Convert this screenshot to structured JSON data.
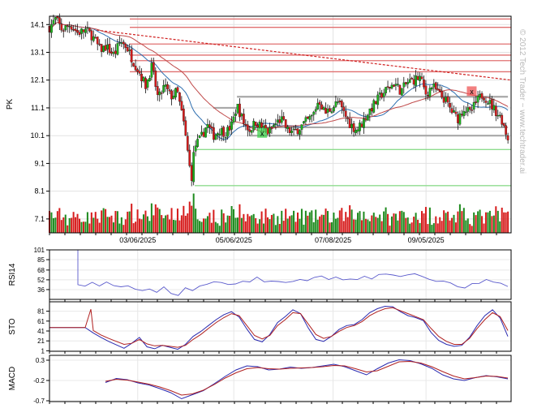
{
  "watermark": "© 2012 Tech Trader ~ www.techtrader.ai",
  "chart_data": [
    {
      "type": "candlestick",
      "panel": "price",
      "ylabel": "PK",
      "yticks": [
        7.1,
        8.1,
        9.1,
        10.1,
        11.1,
        12.1,
        13.1,
        14.1
      ],
      "ylim": [
        6.6,
        14.4
      ],
      "xlim": [
        "2025-01-09",
        "2025-10-29"
      ],
      "xticks": [
        "03/06/2025",
        "05/06/2025",
        "07/08/2025",
        "09/05/2025"
      ],
      "grid": true,
      "close_path": [
        [
          "2025-01-09",
          14.0
        ],
        [
          "2025-01-13",
          14.3
        ],
        [
          "2025-01-17",
          13.9
        ],
        [
          "2025-01-22",
          14.1
        ],
        [
          "2025-01-27",
          13.8
        ],
        [
          "2025-02-01",
          13.9
        ],
        [
          "2025-02-05",
          13.7
        ],
        [
          "2025-02-10",
          13.2
        ],
        [
          "2025-02-14",
          13.3
        ],
        [
          "2025-02-19",
          13.0
        ],
        [
          "2025-02-23",
          13.5
        ],
        [
          "2025-02-27",
          13.3
        ],
        [
          "2025-03-03",
          12.8
        ],
        [
          "2025-03-07",
          12.4
        ],
        [
          "2025-03-11",
          11.9
        ],
        [
          "2025-03-15",
          12.6
        ],
        [
          "2025-03-19",
          11.4
        ],
        [
          "2025-03-23",
          11.9
        ],
        [
          "2025-03-27",
          11.5
        ],
        [
          "2025-03-31",
          11.7
        ],
        [
          "2025-04-04",
          10.6
        ],
        [
          "2025-04-07",
          9.4
        ],
        [
          "2025-04-09",
          8.5
        ],
        [
          "2025-04-11",
          9.7
        ],
        [
          "2025-04-15",
          10.0
        ],
        [
          "2025-04-19",
          10.5
        ],
        [
          "2025-04-23",
          10.1
        ],
        [
          "2025-04-27",
          10.3
        ],
        [
          "2025-05-01",
          10.2
        ],
        [
          "2025-05-05",
          10.5
        ],
        [
          "2025-05-08",
          11.2
        ],
        [
          "2025-05-12",
          10.6
        ],
        [
          "2025-05-16",
          10.3
        ],
        [
          "2025-05-20",
          10.6
        ],
        [
          "2025-05-24",
          10.4
        ],
        [
          "2025-05-28",
          10.2
        ],
        [
          "2025-06-01",
          10.5
        ],
        [
          "2025-06-05",
          10.7
        ],
        [
          "2025-06-09",
          10.3
        ],
        [
          "2025-06-13",
          10.2
        ],
        [
          "2025-06-17",
          10.4
        ],
        [
          "2025-06-21",
          10.6
        ],
        [
          "2025-06-25",
          10.8
        ],
        [
          "2025-06-29",
          11.4
        ],
        [
          "2025-07-03",
          10.9
        ],
        [
          "2025-07-07",
          11.1
        ],
        [
          "2025-07-11",
          11.3
        ],
        [
          "2025-07-15",
          10.9
        ],
        [
          "2025-07-19",
          10.5
        ],
        [
          "2025-07-23",
          10.3
        ],
        [
          "2025-07-27",
          10.6
        ],
        [
          "2025-07-31",
          11.0
        ],
        [
          "2025-08-04",
          11.3
        ],
        [
          "2025-08-08",
          11.6
        ],
        [
          "2025-08-12",
          11.8
        ],
        [
          "2025-08-16",
          12.0
        ],
        [
          "2025-08-20",
          11.7
        ],
        [
          "2025-08-24",
          12.0
        ],
        [
          "2025-08-28",
          12.1
        ],
        [
          "2025-09-01",
          12.2
        ],
        [
          "2025-09-05",
          11.6
        ],
        [
          "2025-09-09",
          11.9
        ],
        [
          "2025-09-13",
          11.6
        ],
        [
          "2025-09-17",
          11.4
        ],
        [
          "2025-09-21",
          11.0
        ],
        [
          "2025-09-25",
          10.7
        ],
        [
          "2025-09-29",
          11.1
        ],
        [
          "2025-10-03",
          10.9
        ],
        [
          "2025-10-07",
          11.3
        ],
        [
          "2025-10-11",
          11.6
        ],
        [
          "2025-10-15",
          11.3
        ],
        [
          "2025-10-19",
          11.0
        ],
        [
          "2025-10-23",
          10.7
        ],
        [
          "2025-10-27",
          10.0
        ]
      ],
      "resistance_lines": [
        14.3,
        14.0,
        13.4,
        13.0,
        12.8,
        12.4
      ],
      "support_lines": [
        9.6,
        8.3
      ],
      "grey_levels": [
        {
          "value": 11.5,
          "from": "2025-05-08",
          "to": "2025-10-27"
        },
        {
          "value": 11.1,
          "from": "2025-04-23",
          "to": "2025-05-08"
        },
        {
          "value": 10.4,
          "from": "2025-05-16",
          "to": "2025-10-27"
        },
        {
          "value": 10.1,
          "from": "2025-05-16",
          "to": "2025-10-27"
        }
      ],
      "trendline": {
        "from": [
          "2025-02-08",
          13.9
        ],
        "to": [
          "2025-10-29",
          12.1
        ]
      },
      "markers": [
        {
          "label": "x",
          "date": "2025-05-24",
          "value": 10.2,
          "color": "#3ccf4b"
        },
        {
          "label": "x",
          "date": "2025-10-04",
          "value": 11.7,
          "color": "#ee5555"
        }
      ],
      "volume": {
        "ymax": 8.0
      }
    },
    {
      "type": "line",
      "panel": "RSI14",
      "ylabel": "RSI14",
      "yticks": [
        101,
        85,
        68,
        52,
        36
      ],
      "ylim": [
        20,
        101
      ],
      "series": [
        {
          "values": [
            44,
            46,
            44,
            46,
            43,
            40,
            42,
            37,
            34,
            40,
            32,
            38,
            30,
            25,
            39,
            37,
            42,
            45,
            46,
            48,
            45,
            47,
            52,
            49,
            55,
            50,
            47,
            51,
            49,
            47,
            52,
            48,
            54,
            56,
            53,
            58,
            52,
            55,
            51,
            57,
            54,
            59,
            61,
            57,
            60,
            58,
            61,
            57,
            54,
            50,
            48,
            44,
            40,
            38,
            44,
            48,
            52,
            49,
            44,
            40
          ]
        }
      ]
    },
    {
      "type": "line",
      "panel": "STO",
      "ylabel": "STO",
      "yticks": [
        81,
        61,
        41,
        21,
        1
      ],
      "ylim": [
        0,
        100
      ],
      "series": [
        {
          "values": [
            37,
            28,
            20,
            13,
            6,
            16,
            28,
            9,
            5,
            12,
            8,
            4,
            14,
            30,
            40,
            52,
            64,
            74,
            80,
            69,
            45,
            24,
            19,
            34,
            58,
            70,
            84,
            76,
            47,
            24,
            20,
            30,
            44,
            52,
            54,
            64,
            78,
            86,
            91,
            90,
            80,
            72,
            68,
            62,
            38,
            22,
            14,
            10,
            12,
            28,
            52,
            72,
            84,
            67,
            30
          ]
        },
        {
          "values": [
            42,
            33,
            26,
            20,
            14,
            16,
            24,
            15,
            11,
            12,
            10,
            8,
            12,
            24,
            34,
            46,
            58,
            68,
            76,
            72,
            52,
            32,
            25,
            32,
            52,
            64,
            78,
            76,
            55,
            34,
            26,
            30,
            40,
            48,
            52,
            60,
            72,
            80,
            86,
            88,
            82,
            76,
            70,
            64,
            46,
            30,
            20,
            14,
            14,
            26,
            46,
            64,
            78,
            70,
            42
          ]
        }
      ]
    },
    {
      "type": "line",
      "panel": "MACD",
      "ylabel": "MACD",
      "yticks": [
        0.3,
        -0.2,
        -0.7
      ],
      "ylim": [
        -0.72,
        0.42
      ],
      "series": [
        {
          "values": [
            -0.25,
            -0.15,
            -0.18,
            -0.26,
            -0.31,
            -0.4,
            -0.5,
            -0.65,
            -0.55,
            -0.45,
            -0.28,
            -0.1,
            0.06,
            0.16,
            0.14,
            0.06,
            0.08,
            0.13,
            0.1,
            0.12,
            0.16,
            0.2,
            0.14,
            0.04,
            -0.06,
            0.09,
            0.23,
            0.31,
            0.29,
            0.21,
            0.1,
            -0.06,
            -0.16,
            -0.2,
            -0.13,
            -0.08,
            -0.11,
            -0.16
          ]
        },
        {
          "values": [
            -0.22,
            -0.17,
            -0.19,
            -0.24,
            -0.29,
            -0.36,
            -0.45,
            -0.56,
            -0.53,
            -0.44,
            -0.3,
            -0.14,
            -0.01,
            0.09,
            0.12,
            0.09,
            0.08,
            0.1,
            0.11,
            0.12,
            0.14,
            0.17,
            0.16,
            0.09,
            0.01,
            0.04,
            0.15,
            0.26,
            0.27,
            0.23,
            0.14,
            0.02,
            -0.09,
            -0.16,
            -0.13,
            -0.09,
            -0.1,
            -0.14
          ]
        }
      ]
    }
  ]
}
